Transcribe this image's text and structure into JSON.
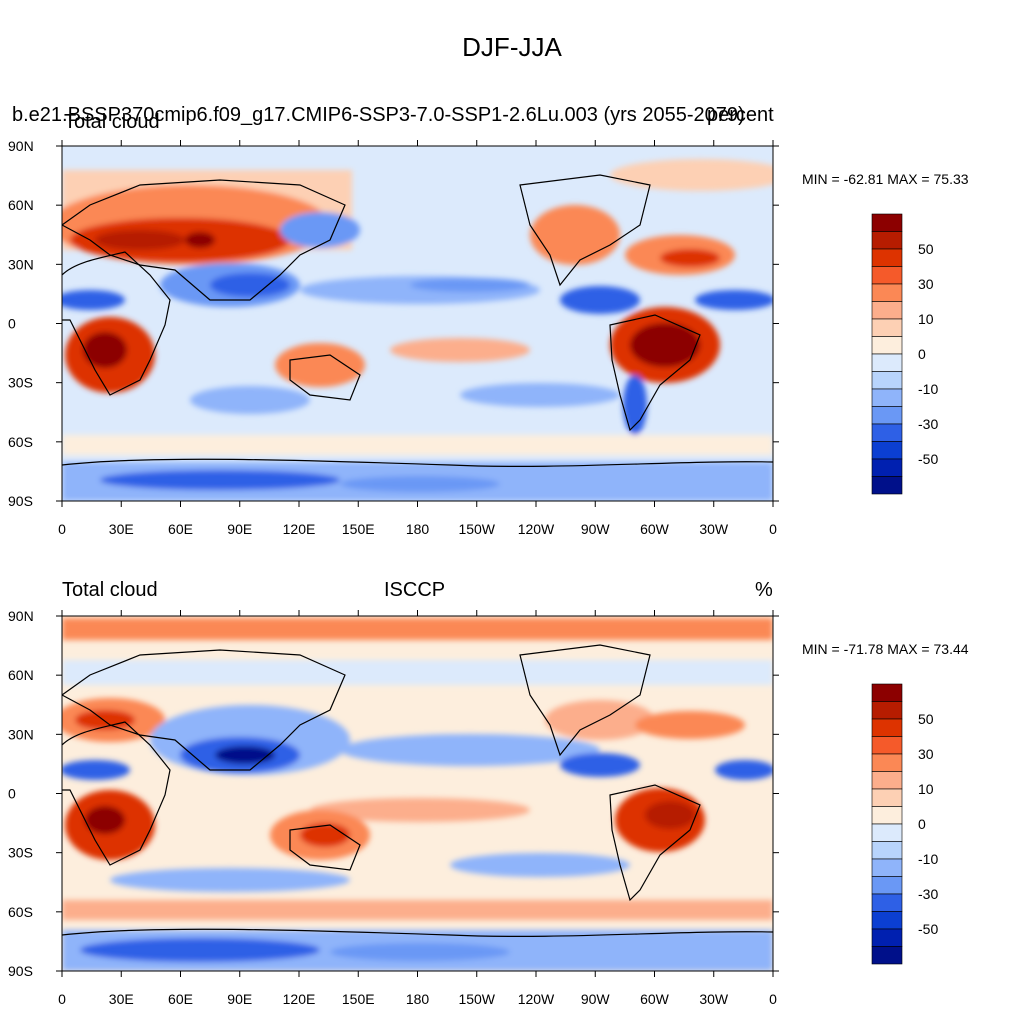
{
  "title": "DJF-JJA",
  "panels": [
    {
      "left_string": "b.e21.BSSP370cmip6.f09_g17.CMIP6-SSP3-7.0-SSP1-2.6Lu.003 (yrs 2055-2079)",
      "overlay_left": "Total cloud",
      "overlay_right": "percent",
      "center_string": "",
      "right_string": "",
      "min_max": "MIN = -62.81 MAX =  75.33"
    },
    {
      "left_string": "Total cloud",
      "overlay_left": "",
      "overlay_right": "",
      "center_string": "ISCCP",
      "right_string": "%",
      "min_max": "MIN = -71.78 MAX =  73.44"
    }
  ],
  "lat_ticks": [
    "90N",
    "60N",
    "30N",
    "0",
    "30S",
    "60S",
    "90S"
  ],
  "lon_ticks": [
    "0",
    "30E",
    "60E",
    "90E",
    "120E",
    "150E",
    "180",
    "150W",
    "120W",
    "90W",
    "60W",
    "30W",
    "0"
  ],
  "colorbar": {
    "labels": [
      "50",
      "30",
      "10",
      "0",
      "-10",
      "-30",
      "-50"
    ],
    "colors": [
      "#8c0000",
      "#b61c00",
      "#dd3300",
      "#f55a2a",
      "#fb8855",
      "#fcae8c",
      "#fdd0b4",
      "#fdeedd",
      "#dceafc",
      "#b8d4fc",
      "#8fb4fa",
      "#6a98f5",
      "#2e60e6",
      "#0b3fd2",
      "#0020b0",
      "#00108a"
    ]
  },
  "colors": {
    "land_bg": "#fdeedd",
    "ocean_bg": "#dceafc",
    "coastline": "#000000"
  }
}
